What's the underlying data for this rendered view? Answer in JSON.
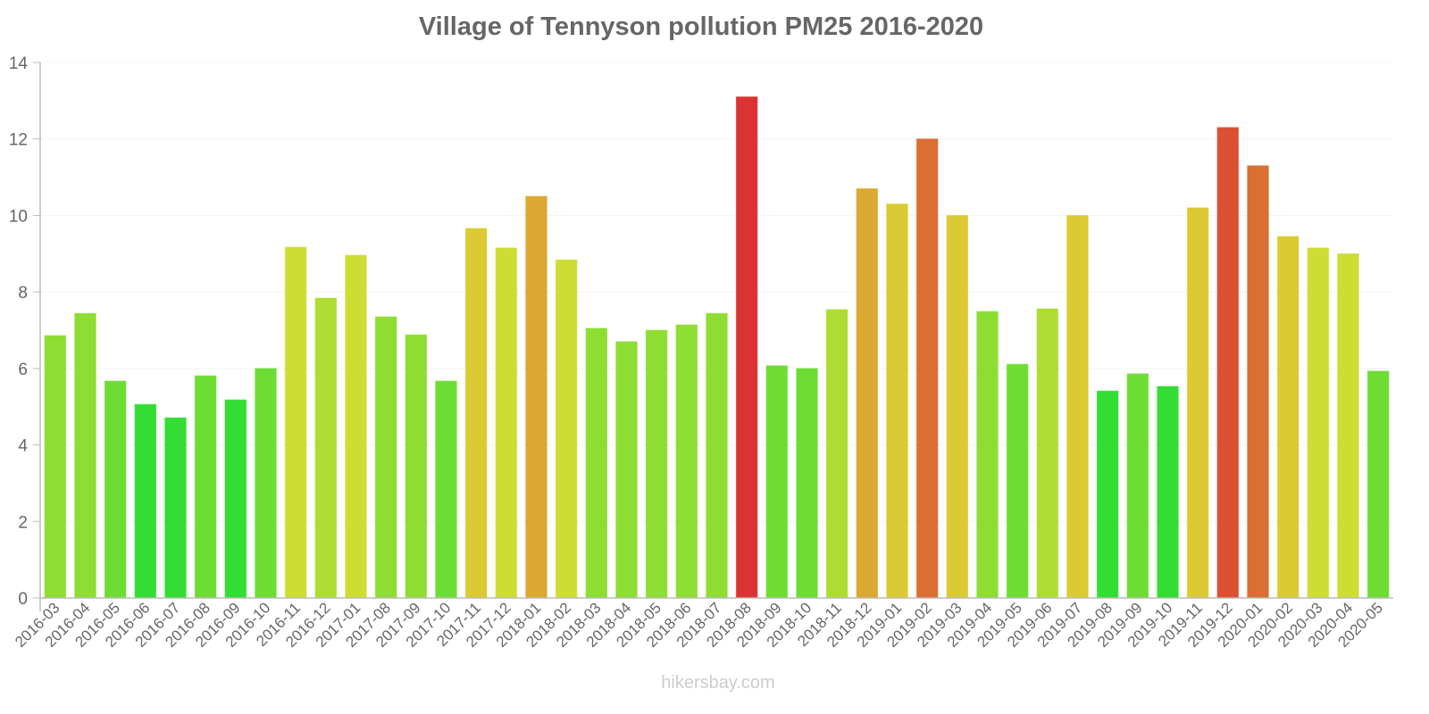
{
  "chart_data": {
    "type": "bar",
    "title": "Village of Tennyson pollution PM25 2016-2020",
    "xlabel": "",
    "ylabel": "",
    "ylim": [
      0,
      14
    ],
    "yticks": [
      0,
      2,
      4,
      6,
      8,
      10,
      12,
      14
    ],
    "grid": true,
    "legend": null,
    "categories": [
      "2016-03",
      "2016-04",
      "2016-05",
      "2016-06",
      "2016-07",
      "2016-08",
      "2016-09",
      "2016-10",
      "2016-11",
      "2016-12",
      "2017-01",
      "2017-08",
      "2017-09",
      "2017-10",
      "2017-11",
      "2017-12",
      "2018-01",
      "2018-02",
      "2018-03",
      "2018-04",
      "2018-05",
      "2018-06",
      "2018-07",
      "2018-08",
      "2018-09",
      "2018-10",
      "2018-11",
      "2018-12",
      "2019-01",
      "2019-02",
      "2019-03",
      "2019-04",
      "2019-05",
      "2019-06",
      "2019-07",
      "2019-08",
      "2019-09",
      "2019-10",
      "2019-11",
      "2019-12",
      "2020-01",
      "2020-02",
      "2020-03",
      "2020-04",
      "2020-05"
    ],
    "values": [
      6.86,
      7.44,
      5.67,
      5.06,
      4.71,
      5.81,
      5.18,
      6.0,
      9.17,
      7.84,
      8.96,
      7.35,
      6.88,
      5.67,
      9.66,
      9.15,
      10.5,
      8.84,
      7.05,
      6.7,
      7.0,
      7.14,
      7.44,
      13.1,
      6.07,
      6.0,
      7.54,
      10.7,
      10.3,
      12.0,
      10.0,
      7.49,
      6.11,
      7.56,
      10.0,
      5.41,
      5.86,
      5.53,
      10.2,
      12.3,
      11.3,
      9.45,
      9.15,
      9.0,
      5.93
    ],
    "colors": [
      "#8ddd33",
      "#8ddd33",
      "#6ddd33",
      "#33dd33",
      "#33dd33",
      "#6ddd33",
      "#33dd33",
      "#6ddd33",
      "#cddd33",
      "#addd33",
      "#cddd33",
      "#8ddd33",
      "#8ddd33",
      "#6ddd33",
      "#dbca33",
      "#cddd33",
      "#dba933",
      "#cddd33",
      "#8ddd33",
      "#8ddd33",
      "#8ddd33",
      "#8ddd33",
      "#8ddd33",
      "#db3333",
      "#6ddd33",
      "#6ddd33",
      "#addd33",
      "#dba933",
      "#dbca33",
      "#db6e33",
      "#dbca33",
      "#8ddd33",
      "#6ddd33",
      "#addd33",
      "#dbca33",
      "#33dd33",
      "#6ddd33",
      "#33dd33",
      "#dbca33",
      "#db5033",
      "#db6e33",
      "#dbca33",
      "#cddd33",
      "#cddd33",
      "#6ddd33"
    ]
  },
  "watermark": "hikersbay.com"
}
